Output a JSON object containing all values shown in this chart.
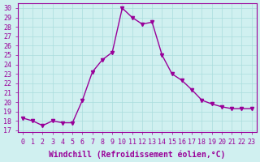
{
  "x": [
    0,
    1,
    2,
    3,
    4,
    5,
    6,
    7,
    8,
    9,
    10,
    11,
    12,
    13,
    14,
    15,
    16,
    17,
    18,
    19,
    20,
    21,
    22,
    23
  ],
  "y": [
    18.3,
    18.0,
    17.5,
    18.0,
    17.8,
    17.8,
    20.2,
    23.2,
    24.5,
    25.3,
    30.0,
    29.0,
    28.3,
    28.5,
    25.0,
    23.0,
    22.3,
    21.3,
    20.2,
    19.8,
    19.5,
    19.3,
    19.3,
    19.3
  ],
  "line_color": "#990099",
  "marker": "v",
  "marker_size": 3,
  "linewidth": 1.0,
  "background_color": "#d0f0f0",
  "grid_color": "#aadddd",
  "xlabel": "Windchill (Refroidissement éolien,°C)",
  "xlabel_fontsize": 7.0,
  "yticks": [
    17,
    18,
    19,
    20,
    21,
    22,
    23,
    24,
    25,
    26,
    27,
    28,
    29,
    30
  ],
  "ylim": [
    16.8,
    30.5
  ],
  "xlim": [
    -0.5,
    23.5
  ],
  "tick_fontsize": 6.0
}
